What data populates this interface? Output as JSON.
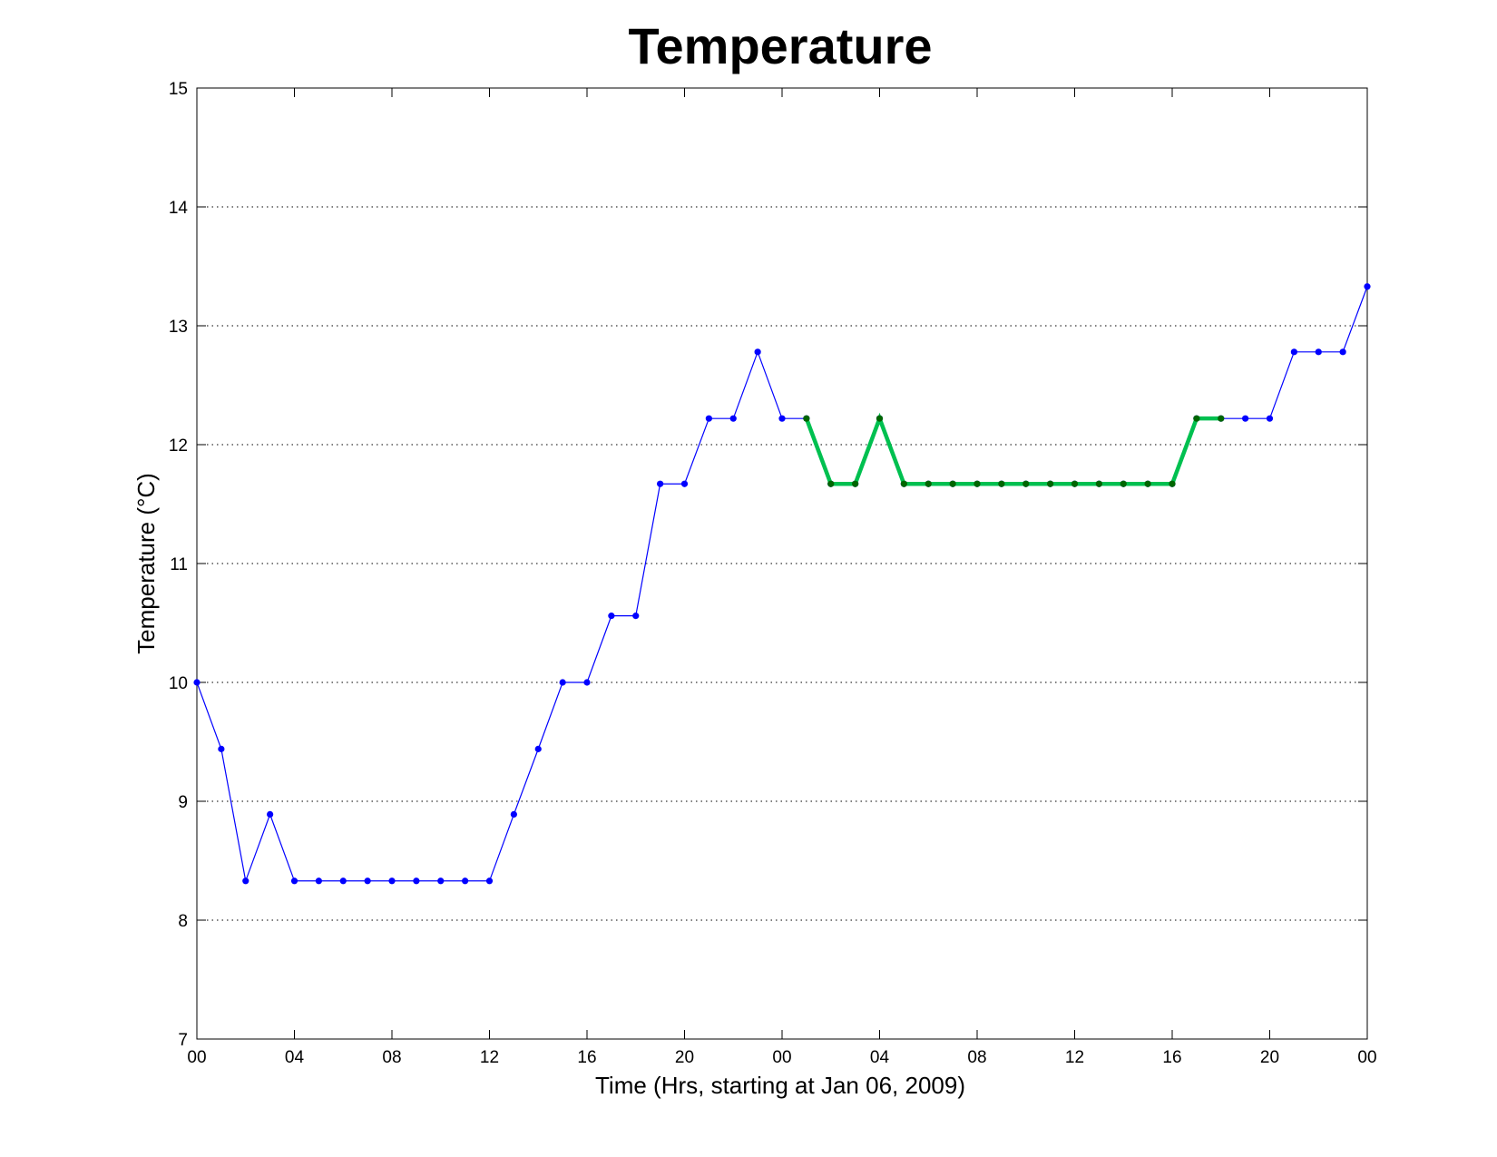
{
  "chart_data": {
    "type": "line",
    "title": "Temperature",
    "xlabel": "Time (Hrs, starting at Jan 06, 2009)",
    "ylabel": "Temperature (°C)",
    "xlim": [
      0,
      48
    ],
    "ylim": [
      7,
      15
    ],
    "x_tick_values": [
      0,
      4,
      8,
      12,
      16,
      20,
      24,
      28,
      32,
      36,
      40,
      44,
      48
    ],
    "x_tick_labels": [
      "00",
      "04",
      "08",
      "12",
      "16",
      "20",
      "00",
      "04",
      "08",
      "12",
      "16",
      "20",
      "00"
    ],
    "y_ticks": [
      7,
      8,
      9,
      10,
      11,
      12,
      13,
      14,
      15
    ],
    "grid": "horizontal-dotted",
    "series": [
      {
        "color": "#0000ff",
        "marker_color": "#0000ff",
        "x": [
          0,
          1,
          2,
          3,
          4,
          5,
          6,
          7,
          8,
          9,
          10,
          11,
          12,
          13,
          14,
          15,
          16,
          17,
          18,
          19,
          20,
          21,
          22,
          23,
          24,
          25,
          26,
          27,
          28,
          29,
          30,
          31,
          32,
          33,
          34,
          35,
          36,
          37,
          38,
          39,
          40,
          41,
          42,
          43,
          44,
          45,
          46,
          47,
          48
        ],
        "values": [
          10.0,
          9.44,
          8.33,
          8.89,
          8.33,
          8.33,
          8.33,
          8.33,
          8.33,
          8.33,
          8.33,
          8.33,
          8.33,
          8.89,
          9.44,
          10.0,
          10.0,
          10.56,
          10.56,
          11.67,
          11.67,
          12.22,
          12.22,
          12.78,
          12.22,
          12.22,
          11.67,
          11.67,
          12.22,
          11.67,
          11.67,
          11.67,
          11.67,
          11.67,
          11.67,
          11.67,
          11.67,
          11.67,
          11.67,
          11.67,
          11.67,
          12.22,
          12.22,
          12.22,
          12.22,
          12.78,
          12.78,
          12.78,
          13.33
        ]
      },
      {
        "color": "#00c050",
        "marker_color": "#006600",
        "x": [
          25,
          26,
          27,
          28,
          29,
          30,
          31,
          32,
          33,
          34,
          35,
          36,
          37,
          38,
          39,
          40,
          41,
          42
        ],
        "values": [
          12.22,
          11.67,
          11.67,
          12.22,
          11.67,
          11.67,
          11.67,
          11.67,
          11.67,
          11.67,
          11.67,
          11.67,
          11.67,
          11.67,
          11.67,
          11.67,
          12.22,
          12.22
        ]
      }
    ]
  }
}
